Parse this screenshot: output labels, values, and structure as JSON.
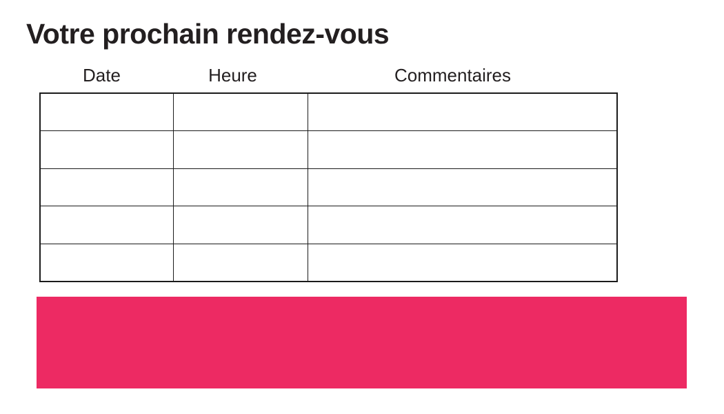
{
  "page": {
    "title": "Votre prochain rendez-vous"
  },
  "appointments_table": {
    "headers": [
      "Date",
      "Heure",
      "Commentaires"
    ],
    "rows": [
      [
        "",
        "",
        ""
      ],
      [
        "",
        "",
        ""
      ],
      [
        "",
        "",
        ""
      ],
      [
        "",
        "",
        ""
      ],
      [
        "",
        "",
        ""
      ]
    ]
  },
  "banner": {
    "color": "#ED2A63"
  }
}
